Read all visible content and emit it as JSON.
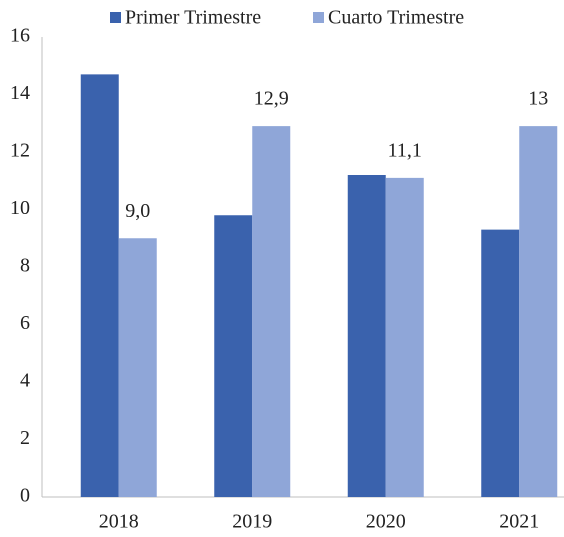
{
  "chart_data": {
    "type": "bar",
    "categories": [
      "2018",
      "2019",
      "2020",
      "2021"
    ],
    "series": [
      {
        "name": "Primer Trimestre",
        "color": "#3a62ad",
        "values": [
          14.7,
          9.8,
          11.2,
          9.3
        ]
      },
      {
        "name": "Cuarto Trimestre",
        "color": "#8fa6d8",
        "values": [
          9.0,
          12.9,
          11.1,
          12.9
        ],
        "value_labels": [
          "9,0",
          "12,9",
          "11,1",
          "13"
        ]
      }
    ],
    "ylim": [
      0,
      16
    ],
    "yticks": [
      0,
      2,
      4,
      6,
      8,
      10,
      12,
      14,
      16
    ],
    "grid": false,
    "legend": "top"
  }
}
